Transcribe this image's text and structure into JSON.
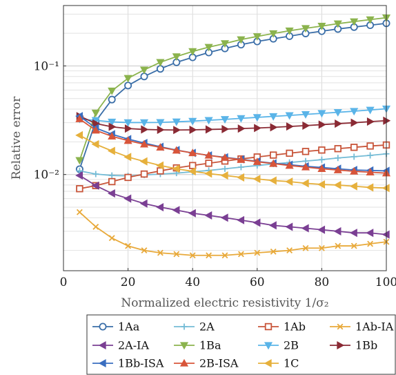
{
  "chart_data": {
    "type": "line",
    "xlabel": "Normalized electric resistivity 1/σ₂",
    "ylabel": "Relative error",
    "xlim": [
      0,
      100
    ],
    "ylim": [
      0.0013,
      0.36
    ],
    "yscale": "log",
    "x_ticks": [
      0,
      20,
      40,
      60,
      80,
      100
    ],
    "x_tick_labels": [
      "0",
      "20",
      "40",
      "60",
      "80",
      "100"
    ],
    "y_ticks": [
      0.01,
      0.1
    ],
    "y_tick_labels": [
      "10⁻²",
      "10⁻¹"
    ],
    "grid": true,
    "legend_placement": "below",
    "x": [
      5,
      10,
      15,
      20,
      25,
      30,
      35,
      40,
      45,
      50,
      55,
      60,
      65,
      70,
      75,
      80,
      85,
      90,
      95,
      100
    ],
    "series": [
      {
        "name": "1Aa",
        "color": "#3a6ea8",
        "marker": "circle",
        "values": [
          0.0112,
          0.031,
          0.049,
          0.066,
          0.08,
          0.094,
          0.108,
          0.12,
          0.133,
          0.145,
          0.157,
          0.168,
          0.178,
          0.188,
          0.199,
          0.209,
          0.219,
          0.228,
          0.237,
          0.247
        ]
      },
      {
        "name": "2A",
        "color": "#74bcd6",
        "marker": "plus",
        "values": [
          0.0108,
          0.0101,
          0.0098,
          0.0097,
          0.0099,
          0.0101,
          0.0103,
          0.0106,
          0.0109,
          0.0113,
          0.0117,
          0.0121,
          0.0125,
          0.0129,
          0.0133,
          0.0137,
          0.0142,
          0.0146,
          0.015,
          0.0155
        ]
      },
      {
        "name": "1Ab",
        "color": "#c8553a",
        "marker": "square",
        "values": [
          0.0074,
          0.0079,
          0.0086,
          0.0094,
          0.0101,
          0.0108,
          0.0115,
          0.0121,
          0.0127,
          0.0133,
          0.0139,
          0.0145,
          0.0151,
          0.0157,
          0.0163,
          0.0168,
          0.0173,
          0.0178,
          0.0183,
          0.0187
        ]
      },
      {
        "name": "1Ab-IA",
        "color": "#e8a93a",
        "marker": "x",
        "values": [
          0.0045,
          0.0033,
          0.0026,
          0.0022,
          0.002,
          0.0019,
          0.00185,
          0.0018,
          0.0018,
          0.0018,
          0.00185,
          0.0019,
          0.00195,
          0.002,
          0.0021,
          0.0021,
          0.0022,
          0.0022,
          0.0023,
          0.0024
        ]
      },
      {
        "name": "2A-IA",
        "color": "#7a3f93",
        "marker": "triangle-left",
        "values": [
          0.0098,
          0.0079,
          0.0067,
          0.006,
          0.0054,
          0.005,
          0.0047,
          0.0044,
          0.0042,
          0.004,
          0.0038,
          0.0036,
          0.0034,
          0.0033,
          0.0032,
          0.0031,
          0.003,
          0.0029,
          0.0029,
          0.0028
        ]
      },
      {
        "name": "1Ba",
        "color": "#8bb34d",
        "marker": "triangle-down",
        "values": [
          0.0135,
          0.037,
          0.059,
          0.077,
          0.092,
          0.108,
          0.122,
          0.136,
          0.149,
          0.161,
          0.175,
          0.187,
          0.199,
          0.211,
          0.222,
          0.233,
          0.245,
          0.256,
          0.267,
          0.278
        ]
      },
      {
        "name": "2B",
        "color": "#5ab4e8",
        "marker": "triangle-down",
        "values": [
          0.0325,
          0.0315,
          0.0305,
          0.0301,
          0.0301,
          0.0302,
          0.0306,
          0.031,
          0.0316,
          0.0322,
          0.0329,
          0.0336,
          0.0343,
          0.035,
          0.0358,
          0.0366,
          0.0374,
          0.0383,
          0.0393,
          0.0403
        ]
      },
      {
        "name": "1Bb",
        "color": "#8a2a34",
        "marker": "triangle-right",
        "values": [
          0.0345,
          0.0295,
          0.0275,
          0.0265,
          0.026,
          0.0258,
          0.0257,
          0.0258,
          0.026,
          0.0262,
          0.0265,
          0.0268,
          0.0272,
          0.0277,
          0.0282,
          0.0288,
          0.0294,
          0.03,
          0.0307,
          0.0313
        ]
      },
      {
        "name": "1Bb-ISA",
        "color": "#3a6ec0",
        "marker": "triangle-left",
        "values": [
          0.0345,
          0.0268,
          0.0235,
          0.0212,
          0.0195,
          0.018,
          0.0168,
          0.0158,
          0.015,
          0.0144,
          0.0138,
          0.0132,
          0.0127,
          0.0123,
          0.0119,
          0.0116,
          0.0113,
          0.011,
          0.0109,
          0.0108
        ]
      },
      {
        "name": "2B-ISA",
        "color": "#d8553a",
        "marker": "triangle-up",
        "values": [
          0.0325,
          0.0255,
          0.0225,
          0.0205,
          0.019,
          0.0178,
          0.0167,
          0.0158,
          0.015,
          0.0143,
          0.0137,
          0.0131,
          0.0126,
          0.0121,
          0.0117,
          0.0113,
          0.011,
          0.0107,
          0.0105,
          0.0103
        ]
      },
      {
        "name": "1C",
        "color": "#e6b03c",
        "marker": "triangle-left",
        "values": [
          0.023,
          0.019,
          0.0165,
          0.0145,
          0.0132,
          0.0121,
          0.0113,
          0.0107,
          0.0102,
          0.0098,
          0.0094,
          0.0091,
          0.0088,
          0.0086,
          0.0083,
          0.0081,
          0.008,
          0.0078,
          0.0076,
          0.0075
        ]
      }
    ]
  }
}
